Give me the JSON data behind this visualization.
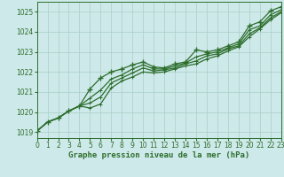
{
  "title": "Graphe pression niveau de la mer (hPa)",
  "bg_color": "#cee9e9",
  "grid_color": "#a8cfc8",
  "line_color": "#2d6e2d",
  "xlim": [
    0,
    23
  ],
  "ylim": [
    1018.7,
    1025.5
  ],
  "yticks": [
    1019,
    1020,
    1021,
    1022,
    1023,
    1024,
    1025
  ],
  "xticks": [
    0,
    1,
    2,
    3,
    4,
    5,
    6,
    7,
    8,
    9,
    10,
    11,
    12,
    13,
    14,
    15,
    16,
    17,
    18,
    19,
    20,
    21,
    22,
    23
  ],
  "series": [
    [
      1019.05,
      1019.5,
      1019.7,
      1020.05,
      1020.3,
      1021.15,
      1021.7,
      1022.0,
      1022.15,
      1022.35,
      1022.5,
      1022.25,
      1022.2,
      1022.4,
      1022.5,
      1023.1,
      1023.0,
      1023.1,
      1023.3,
      1023.5,
      1024.3,
      1024.5,
      1025.05,
      1025.25
    ],
    [
      1019.05,
      1019.5,
      1019.7,
      1020.05,
      1020.3,
      1020.7,
      1021.1,
      1021.65,
      1021.85,
      1022.15,
      1022.35,
      1022.15,
      1022.15,
      1022.3,
      1022.45,
      1022.75,
      1022.9,
      1023.0,
      1023.2,
      1023.4,
      1024.1,
      1024.3,
      1024.85,
      1025.1
    ],
    [
      1019.05,
      1019.5,
      1019.7,
      1020.05,
      1020.3,
      1020.45,
      1020.75,
      1021.45,
      1021.7,
      1021.95,
      1022.2,
      1022.05,
      1022.1,
      1022.2,
      1022.4,
      1022.55,
      1022.8,
      1022.9,
      1023.15,
      1023.3,
      1023.9,
      1024.2,
      1024.7,
      1025.0
    ],
    [
      1019.05,
      1019.5,
      1019.7,
      1020.05,
      1020.3,
      1020.2,
      1020.4,
      1021.2,
      1021.55,
      1021.75,
      1022.0,
      1021.95,
      1022.0,
      1022.15,
      1022.3,
      1022.4,
      1022.65,
      1022.8,
      1023.05,
      1023.25,
      1023.75,
      1024.15,
      1024.6,
      1024.95
    ]
  ],
  "marker": "+",
  "markersize": 4,
  "linewidth": 0.9,
  "tick_fontsize": 5.5,
  "title_fontsize": 6.5
}
